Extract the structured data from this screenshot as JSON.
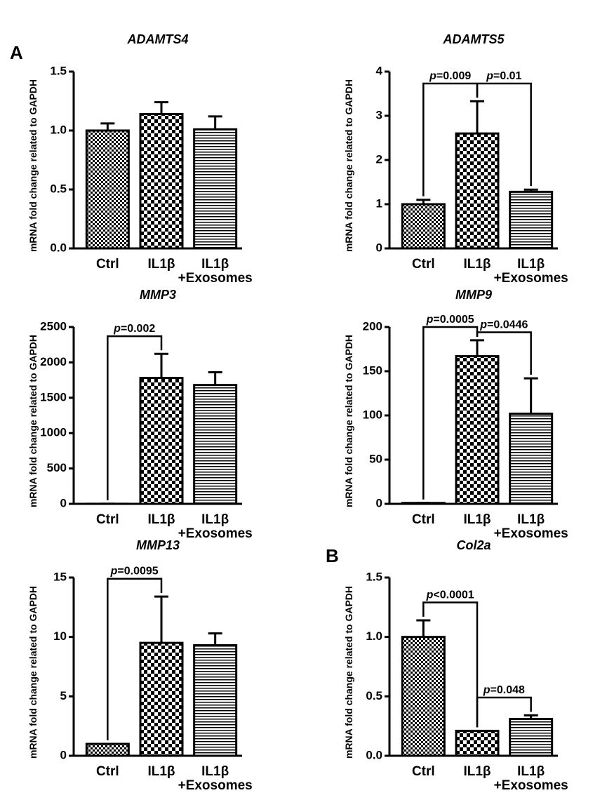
{
  "chart_data": [
    {
      "type": "bar",
      "panel_label": "A",
      "title": "ADAMTS4",
      "ylabel": "mRNA fold change related to GAPDH",
      "categories": [
        "Ctrl",
        "IL1β",
        "IL1β\n+Exosomes"
      ],
      "values": [
        1.0,
        1.14,
        1.01
      ],
      "errors": [
        0.06,
        0.1,
        0.11
      ],
      "ylim": [
        0,
        1.5
      ],
      "yticks": [
        {
          "value": 0,
          "label": "0.0"
        },
        0.5,
        {
          "value": 1,
          "label": "1.0"
        },
        1.5
      ],
      "annotations": []
    },
    {
      "type": "bar",
      "title": "ADAMTS5",
      "ylabel": "mRNA fold change related to GAPDH",
      "categories": [
        "Ctrl",
        "IL1β",
        "IL1β\n+Exosomes"
      ],
      "values": [
        1.0,
        2.6,
        1.28
      ],
      "errors": [
        0.1,
        0.73,
        0.05
      ],
      "ylim": [
        0,
        4
      ],
      "yticks": [
        0,
        1,
        2,
        3,
        4
      ],
      "annotations": [
        {
          "text": "p=0.009",
          "between": [
            0,
            1
          ]
        },
        {
          "text": "p=0.01",
          "between": [
            1,
            2
          ]
        }
      ]
    },
    {
      "type": "bar",
      "title": "MMP3",
      "ylabel": "mRNA fold change related to GAPDH",
      "categories": [
        "Ctrl",
        "IL1β",
        "IL1β\n+Exosomes"
      ],
      "values": [
        1,
        1780,
        1680
      ],
      "errors": [
        0,
        340,
        180
      ],
      "ylim": [
        0,
        2500
      ],
      "yticks": [
        0,
        500,
        1000,
        1500,
        2000,
        2500
      ],
      "annotations": [
        {
          "text": "p=0.002",
          "between": [
            0,
            1
          ]
        }
      ]
    },
    {
      "type": "bar",
      "title": "MMP9",
      "ylabel": "mRNA fold change related to GAPDH",
      "categories": [
        "Ctrl",
        "IL1β",
        "IL1β\n+Exosomes"
      ],
      "values": [
        1,
        167,
        102
      ],
      "errors": [
        0,
        18,
        40
      ],
      "ylim": [
        0,
        200
      ],
      "yticks": [
        0,
        50,
        100,
        150,
        200
      ],
      "annotations": [
        {
          "text": "p=0.0005",
          "between": [
            0,
            1
          ]
        },
        {
          "text": "p=0.0446",
          "between": [
            1,
            2
          ]
        }
      ]
    },
    {
      "type": "bar",
      "title": "MMP13",
      "ylabel": "mRNA fold change related to GAPDH",
      "categories": [
        "Ctrl",
        "IL1β",
        "IL1β\n+Exosomes"
      ],
      "values": [
        1,
        9.5,
        9.3
      ],
      "errors": [
        0,
        3.9,
        1.0
      ],
      "ylim": [
        0,
        15
      ],
      "yticks": [
        0,
        5,
        10,
        15
      ],
      "annotations": [
        {
          "text": "p=0.0095",
          "between": [
            0,
            1
          ]
        }
      ]
    },
    {
      "type": "bar",
      "panel_label": "B",
      "title": "Col2a",
      "ylabel": "mRNA fold change related to GAPDH",
      "categories": [
        "Ctrl",
        "IL1β",
        "IL1β\n+Exosomes"
      ],
      "values": [
        1.0,
        0.21,
        0.31
      ],
      "errors": [
        0.14,
        0,
        0.03
      ],
      "ylim": [
        0,
        1.5
      ],
      "yticks": [
        {
          "value": 0,
          "label": "0.0"
        },
        0.5,
        {
          "value": 1,
          "label": "1.0"
        },
        1.5
      ],
      "annotations": [
        {
          "text": "p<0.0001",
          "between": [
            0,
            1
          ]
        },
        {
          "text": "p=0.048",
          "between": [
            1,
            2
          ]
        }
      ]
    }
  ]
}
